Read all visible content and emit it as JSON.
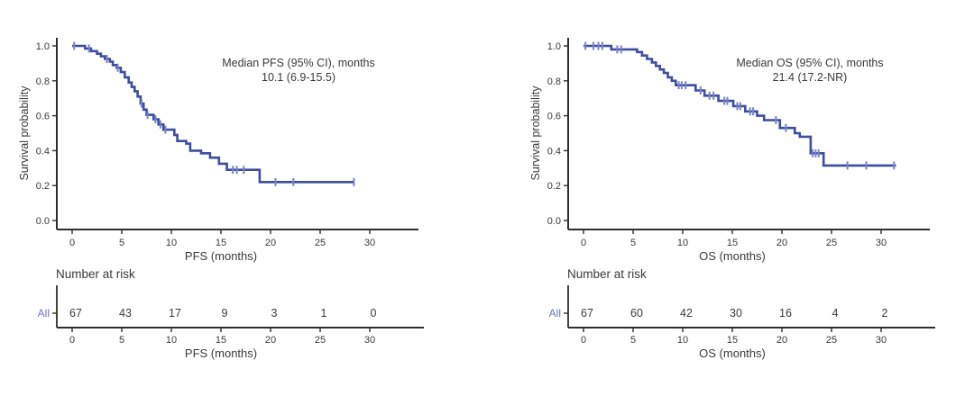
{
  "colors": {
    "curve": "#3D4DA0",
    "censor": "#7983C8",
    "risk_group_label": "#6674C4",
    "text": "#3A3A3A",
    "axis": "#2E2E2E",
    "background": "#FFFFFF"
  },
  "chart_data": [
    {
      "type": "line",
      "subtype": "kaplan-meier-step",
      "title": "",
      "annotation": {
        "line1": "Median PFS (95% CI), months",
        "line2": "10.1 (6.9-15.5)"
      },
      "median_months": 10.1,
      "ci_95": "6.9-15.5",
      "xlabel": "PFS (months)",
      "ylabel": "Survival probability",
      "xlim": [
        0,
        32
      ],
      "ylim": [
        0.0,
        1.0
      ],
      "x_ticks": [
        0,
        5,
        10,
        15,
        20,
        25,
        30
      ],
      "y_ticks": [
        1.0,
        0.8,
        0.6,
        0.4,
        0.2,
        0.0
      ],
      "grid": false,
      "legend": "none",
      "steps": [
        [
          1.3,
          0.985
        ],
        [
          1.9,
          0.97
        ],
        [
          2.5,
          0.955
        ],
        [
          2.9,
          0.94
        ],
        [
          3.3,
          0.925
        ],
        [
          3.8,
          0.91
        ],
        [
          4.1,
          0.89
        ],
        [
          4.5,
          0.875
        ],
        [
          4.9,
          0.85
        ],
        [
          5.3,
          0.82
        ],
        [
          5.7,
          0.79
        ],
        [
          6.0,
          0.765
        ],
        [
          6.3,
          0.74
        ],
        [
          6.6,
          0.71
        ],
        [
          6.9,
          0.67
        ],
        [
          7.2,
          0.635
        ],
        [
          7.5,
          0.605
        ],
        [
          8.2,
          0.58
        ],
        [
          8.7,
          0.55
        ],
        [
          9.2,
          0.52
        ],
        [
          10.3,
          0.49
        ],
        [
          10.6,
          0.455
        ],
        [
          11.5,
          0.44
        ],
        [
          11.9,
          0.4
        ],
        [
          13.0,
          0.385
        ],
        [
          13.9,
          0.36
        ],
        [
          14.8,
          0.325
        ],
        [
          15.6,
          0.29
        ],
        [
          18.9,
          0.22
        ]
      ],
      "censors": [
        [
          0.2,
          1.0
        ],
        [
          1.7,
          0.985
        ],
        [
          3.5,
          0.925
        ],
        [
          4.6,
          0.875
        ],
        [
          7.0,
          0.67
        ],
        [
          7.6,
          0.605
        ],
        [
          8.4,
          0.58
        ],
        [
          8.9,
          0.55
        ],
        [
          9.4,
          0.52
        ],
        [
          16.2,
          0.29
        ],
        [
          16.6,
          0.29
        ],
        [
          17.3,
          0.29
        ],
        [
          20.5,
          0.22
        ],
        [
          22.3,
          0.22
        ],
        [
          28.4,
          0.22
        ]
      ],
      "end_time": 28.4,
      "number_at_risk": {
        "header": "Number at risk",
        "group": "All",
        "times": [
          0,
          5,
          10,
          15,
          20,
          25,
          30
        ],
        "values": [
          67,
          43,
          17,
          9,
          3,
          1,
          0
        ]
      }
    },
    {
      "type": "line",
      "subtype": "kaplan-meier-step",
      "title": "",
      "annotation": {
        "line1": "Median OS (95% CI), months",
        "line2": "21.4 (17.2-NR)"
      },
      "median_months": 21.4,
      "ci_95": "17.2-NR",
      "xlabel": "OS (months)",
      "ylabel": "Survival probability",
      "xlim": [
        0,
        32
      ],
      "ylim": [
        0.0,
        1.0
      ],
      "x_ticks": [
        0,
        5,
        10,
        15,
        20,
        25,
        30
      ],
      "y_ticks": [
        1.0,
        0.8,
        0.6,
        0.4,
        0.2,
        0.0
      ],
      "grid": false,
      "legend": "none",
      "steps": [
        [
          2.8,
          0.98
        ],
        [
          5.4,
          0.965
        ],
        [
          5.9,
          0.945
        ],
        [
          6.4,
          0.925
        ],
        [
          6.9,
          0.905
        ],
        [
          7.3,
          0.885
        ],
        [
          7.7,
          0.865
        ],
        [
          8.1,
          0.845
        ],
        [
          8.5,
          0.82
        ],
        [
          8.9,
          0.8
        ],
        [
          9.3,
          0.775
        ],
        [
          11.3,
          0.745
        ],
        [
          12.2,
          0.715
        ],
        [
          13.6,
          0.685
        ],
        [
          15.1,
          0.655
        ],
        [
          16.3,
          0.625
        ],
        [
          17.5,
          0.6
        ],
        [
          18.2,
          0.575
        ],
        [
          19.8,
          0.53
        ],
        [
          21.3,
          0.5
        ],
        [
          21.8,
          0.48
        ],
        [
          22.9,
          0.385
        ],
        [
          24.2,
          0.315
        ]
      ],
      "censors": [
        [
          0.2,
          1.0
        ],
        [
          1.0,
          1.0
        ],
        [
          1.5,
          1.0
        ],
        [
          1.9,
          1.0
        ],
        [
          3.4,
          0.98
        ],
        [
          3.8,
          0.98
        ],
        [
          9.6,
          0.775
        ],
        [
          9.9,
          0.775
        ],
        [
          10.3,
          0.775
        ],
        [
          11.8,
          0.745
        ],
        [
          12.7,
          0.715
        ],
        [
          13.1,
          0.715
        ],
        [
          14.2,
          0.685
        ],
        [
          14.5,
          0.685
        ],
        [
          15.5,
          0.655
        ],
        [
          15.8,
          0.655
        ],
        [
          16.8,
          0.625
        ],
        [
          17.1,
          0.625
        ],
        [
          19.4,
          0.575
        ],
        [
          20.4,
          0.53
        ],
        [
          23.1,
          0.385
        ],
        [
          23.4,
          0.385
        ],
        [
          23.7,
          0.385
        ],
        [
          26.6,
          0.315
        ],
        [
          28.5,
          0.315
        ],
        [
          31.3,
          0.315
        ]
      ],
      "end_time": 31.5,
      "number_at_risk": {
        "header": "Number at risk",
        "group": "All",
        "times": [
          0,
          5,
          10,
          15,
          20,
          25,
          30
        ],
        "values": [
          67,
          60,
          42,
          30,
          16,
          4,
          2
        ]
      }
    }
  ]
}
